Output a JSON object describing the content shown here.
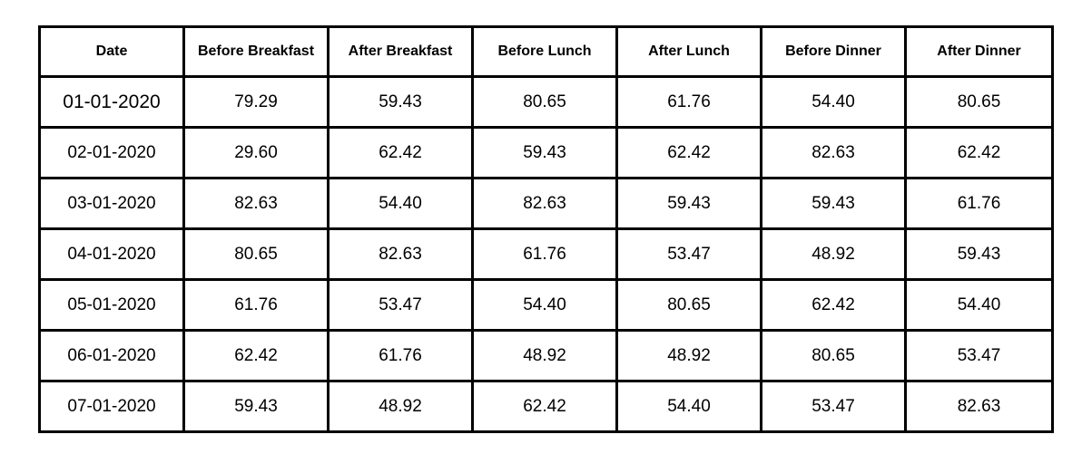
{
  "table": {
    "headers": [
      "Date",
      "Before Breakfast",
      "After Breakfast",
      "Before Lunch",
      "After Lunch",
      "Before Dinner",
      "After Dinner"
    ],
    "rows": [
      [
        "01-01-2020",
        "79.29",
        "59.43",
        "80.65",
        "61.76",
        "54.40",
        "80.65"
      ],
      [
        "02-01-2020",
        "29.60",
        "62.42",
        "59.43",
        "62.42",
        "82.63",
        "62.42"
      ],
      [
        "03-01-2020",
        "82.63",
        "54.40",
        "82.63",
        "59.43",
        "59.43",
        "61.76"
      ],
      [
        "04-01-2020",
        "80.65",
        "82.63",
        "61.76",
        "53.47",
        "48.92",
        "59.43"
      ],
      [
        "05-01-2020",
        "61.76",
        "53.47",
        "54.40",
        "80.65",
        "62.42",
        "54.40"
      ],
      [
        "06-01-2020",
        "62.42",
        "61.76",
        "48.92",
        "48.92",
        "80.65",
        "53.47"
      ],
      [
        "07-01-2020",
        "59.43",
        "48.92",
        "62.42",
        "54.40",
        "53.47",
        "82.63"
      ]
    ]
  }
}
